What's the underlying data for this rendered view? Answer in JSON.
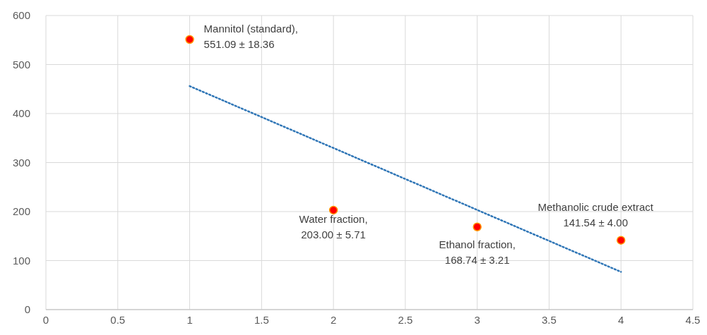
{
  "chart_data": {
    "type": "scatter",
    "xlim": [
      0,
      4.5
    ],
    "xticks": [
      0,
      0.5,
      1,
      1.5,
      2,
      2.5,
      3,
      3.5,
      4,
      4.5
    ],
    "ylim": [
      0,
      600
    ],
    "yticks": [
      0,
      100,
      200,
      300,
      400,
      500,
      600
    ],
    "grid": true,
    "marker": "circle",
    "series": [
      {
        "color": "#ff0000",
        "x": [
          1,
          2,
          3,
          4
        ],
        "values": [
          551.09,
          203.0,
          168.74,
          141.54
        ]
      },
      {
        "type": "line",
        "color": "#2e75b6",
        "line_style": "dotted",
        "marker": "none",
        "x": [
          1,
          4
        ],
        "values": [
          456,
          77
        ]
      }
    ],
    "annotations": [
      {
        "text": "Mannitol (standard),\n551.09 ± 18.36",
        "x": 1,
        "y": 551.09
      },
      {
        "text": "Water fraction,\n203.00 ± 5.71",
        "x": 2,
        "y": 203.0
      },
      {
        "text": "Ethanol fraction,\n168.74 ± 3.21",
        "x": 3,
        "y": 168.74
      },
      {
        "text": "Methanolic crude extract\n141.54 ± 4.00",
        "x": 4,
        "y": 141.54
      }
    ]
  }
}
